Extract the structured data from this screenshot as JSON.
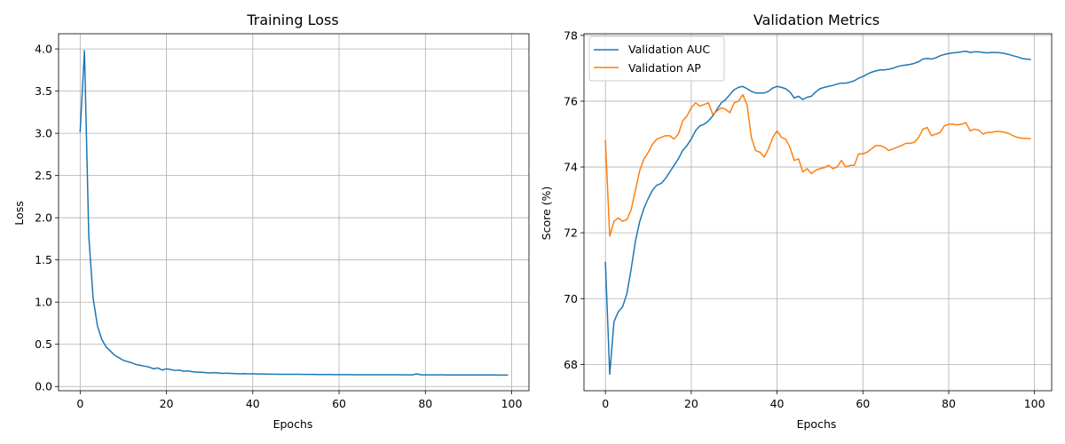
{
  "chart_data": [
    {
      "type": "line",
      "title": "Training Loss",
      "xlabel": "Epochs",
      "ylabel": "Loss",
      "grid": true,
      "xlim": [
        -5,
        104
      ],
      "ylim": [
        -0.05,
        4.18
      ],
      "xticks": [
        0,
        20,
        40,
        60,
        80,
        100
      ],
      "yticks": [
        0.0,
        0.5,
        1.0,
        1.5,
        2.0,
        2.5,
        3.0,
        3.5,
        4.0
      ],
      "ytick_labels": [
        "0.0",
        "0.5",
        "1.0",
        "1.5",
        "2.0",
        "2.5",
        "3.0",
        "3.5",
        "4.0"
      ],
      "series": [
        {
          "color": "#1f77b4",
          "x": [
            0,
            1,
            2,
            3,
            4,
            5,
            6,
            7,
            8,
            9,
            10,
            11,
            12,
            13,
            14,
            15,
            16,
            17,
            18,
            19,
            20,
            21,
            22,
            23,
            24,
            25,
            26,
            27,
            28,
            29,
            30,
            31,
            32,
            33,
            34,
            35,
            36,
            37,
            38,
            39,
            40,
            41,
            42,
            43,
            44,
            45,
            46,
            47,
            48,
            49,
            50,
            51,
            52,
            53,
            54,
            55,
            56,
            57,
            58,
            59,
            60,
            61,
            62,
            63,
            64,
            65,
            66,
            67,
            68,
            69,
            70,
            71,
            72,
            73,
            74,
            75,
            76,
            77,
            78,
            79,
            80,
            81,
            82,
            83,
            84,
            85,
            86,
            87,
            88,
            89,
            90,
            91,
            92,
            93,
            94,
            95,
            96,
            97,
            98,
            99
          ],
          "values": [
            3.02,
            3.98,
            1.78,
            1.05,
            0.72,
            0.56,
            0.47,
            0.42,
            0.37,
            0.34,
            0.31,
            0.295,
            0.28,
            0.26,
            0.25,
            0.24,
            0.23,
            0.21,
            0.22,
            0.195,
            0.21,
            0.2,
            0.19,
            0.195,
            0.18,
            0.185,
            0.175,
            0.17,
            0.17,
            0.165,
            0.16,
            0.165,
            0.16,
            0.155,
            0.158,
            0.155,
            0.152,
            0.15,
            0.152,
            0.15,
            0.15,
            0.148,
            0.148,
            0.147,
            0.146,
            0.146,
            0.145,
            0.145,
            0.145,
            0.144,
            0.144,
            0.144,
            0.143,
            0.143,
            0.143,
            0.142,
            0.142,
            0.142,
            0.142,
            0.141,
            0.141,
            0.141,
            0.141,
            0.14,
            0.14,
            0.14,
            0.14,
            0.14,
            0.14,
            0.139,
            0.139,
            0.139,
            0.139,
            0.139,
            0.139,
            0.138,
            0.138,
            0.138,
            0.15,
            0.138,
            0.138,
            0.138,
            0.138,
            0.138,
            0.138,
            0.137,
            0.137,
            0.137,
            0.137,
            0.137,
            0.137,
            0.137,
            0.137,
            0.137,
            0.137,
            0.137,
            0.137,
            0.136,
            0.136,
            0.136
          ]
        }
      ]
    },
    {
      "type": "line",
      "title": "Validation Metrics",
      "xlabel": "Epochs",
      "ylabel": "Score (%)",
      "grid": true,
      "legend": "top-left",
      "xlim": [
        -5,
        104
      ],
      "ylim": [
        67.2,
        78.05
      ],
      "xticks": [
        0,
        20,
        40,
        60,
        80,
        100
      ],
      "yticks": [
        68,
        70,
        72,
        74,
        76,
        78
      ],
      "ytick_labels": [
        "68",
        "70",
        "72",
        "74",
        "76",
        "78"
      ],
      "series": [
        {
          "name": "Validation AUC",
          "color": "#1f77b4",
          "x": [
            0,
            1,
            2,
            3,
            4,
            5,
            6,
            7,
            8,
            9,
            10,
            11,
            12,
            13,
            14,
            15,
            16,
            17,
            18,
            19,
            20,
            21,
            22,
            23,
            24,
            25,
            26,
            27,
            28,
            29,
            30,
            31,
            32,
            33,
            34,
            35,
            36,
            37,
            38,
            39,
            40,
            41,
            42,
            43,
            44,
            45,
            46,
            47,
            48,
            49,
            50,
            51,
            52,
            53,
            54,
            55,
            56,
            57,
            58,
            59,
            60,
            61,
            62,
            63,
            64,
            65,
            66,
            67,
            68,
            69,
            70,
            71,
            72,
            73,
            74,
            75,
            76,
            77,
            78,
            79,
            80,
            81,
            82,
            83,
            84,
            85,
            86,
            87,
            88,
            89,
            90,
            91,
            92,
            93,
            94,
            95,
            96,
            97,
            98,
            99
          ],
          "values": [
            71.1,
            67.7,
            69.3,
            69.6,
            69.75,
            70.15,
            70.9,
            71.75,
            72.35,
            72.75,
            73.05,
            73.3,
            73.45,
            73.5,
            73.65,
            73.85,
            74.05,
            74.25,
            74.5,
            74.65,
            74.85,
            75.1,
            75.25,
            75.3,
            75.4,
            75.55,
            75.75,
            75.95,
            76.05,
            76.2,
            76.35,
            76.42,
            76.45,
            76.38,
            76.3,
            76.25,
            76.25,
            76.25,
            76.3,
            76.4,
            76.45,
            76.42,
            76.38,
            76.28,
            76.1,
            76.15,
            76.05,
            76.12,
            76.15,
            76.28,
            76.38,
            76.42,
            76.45,
            76.48,
            76.52,
            76.55,
            76.55,
            76.58,
            76.62,
            76.7,
            76.75,
            76.82,
            76.88,
            76.92,
            76.95,
            76.95,
            76.97,
            77.0,
            77.05,
            77.08,
            77.1,
            77.12,
            77.15,
            77.2,
            77.28,
            77.3,
            77.28,
            77.32,
            77.38,
            77.42,
            77.45,
            77.47,
            77.48,
            77.5,
            77.52,
            77.48,
            77.5,
            77.5,
            77.48,
            77.47,
            77.48,
            77.48,
            77.47,
            77.45,
            77.42,
            77.38,
            77.35,
            77.3,
            77.28,
            77.27
          ]
        },
        {
          "name": "Validation AP",
          "color": "#ff7f0e",
          "x": [
            0,
            1,
            2,
            3,
            4,
            5,
            6,
            7,
            8,
            9,
            10,
            11,
            12,
            13,
            14,
            15,
            16,
            17,
            18,
            19,
            20,
            21,
            22,
            23,
            24,
            25,
            26,
            27,
            28,
            29,
            30,
            31,
            32,
            33,
            34,
            35,
            36,
            37,
            38,
            39,
            40,
            41,
            42,
            43,
            44,
            45,
            46,
            47,
            48,
            49,
            50,
            51,
            52,
            53,
            54,
            55,
            56,
            57,
            58,
            59,
            60,
            61,
            62,
            63,
            64,
            65,
            66,
            67,
            68,
            69,
            70,
            71,
            72,
            73,
            74,
            75,
            76,
            77,
            78,
            79,
            80,
            81,
            82,
            83,
            84,
            85,
            86,
            87,
            88,
            89,
            90,
            91,
            92,
            93,
            94,
            95,
            96,
            97,
            98,
            99
          ],
          "values": [
            74.8,
            71.9,
            72.35,
            72.45,
            72.35,
            72.4,
            72.7,
            73.3,
            73.9,
            74.25,
            74.45,
            74.7,
            74.85,
            74.9,
            74.95,
            74.95,
            74.85,
            75.0,
            75.4,
            75.55,
            75.8,
            75.95,
            75.85,
            75.9,
            75.95,
            75.6,
            75.7,
            75.8,
            75.75,
            75.65,
            75.95,
            76.0,
            76.2,
            75.9,
            74.9,
            74.5,
            74.45,
            74.3,
            74.55,
            74.9,
            75.1,
            74.9,
            74.85,
            74.6,
            74.2,
            74.25,
            73.85,
            73.95,
            73.8,
            73.9,
            73.95,
            73.98,
            74.05,
            73.95,
            74.0,
            74.2,
            74.0,
            74.05,
            74.05,
            74.4,
            74.4,
            74.45,
            74.55,
            74.65,
            74.65,
            74.6,
            74.5,
            74.55,
            74.6,
            74.65,
            74.72,
            74.72,
            74.75,
            74.9,
            75.15,
            75.2,
            74.95,
            75.0,
            75.05,
            75.25,
            75.3,
            75.3,
            75.28,
            75.3,
            75.35,
            75.1,
            75.15,
            75.12,
            75.0,
            75.05,
            75.05,
            75.08,
            75.08,
            75.05,
            75.02,
            74.95,
            74.9,
            74.88,
            74.87,
            74.86
          ]
        }
      ]
    }
  ]
}
